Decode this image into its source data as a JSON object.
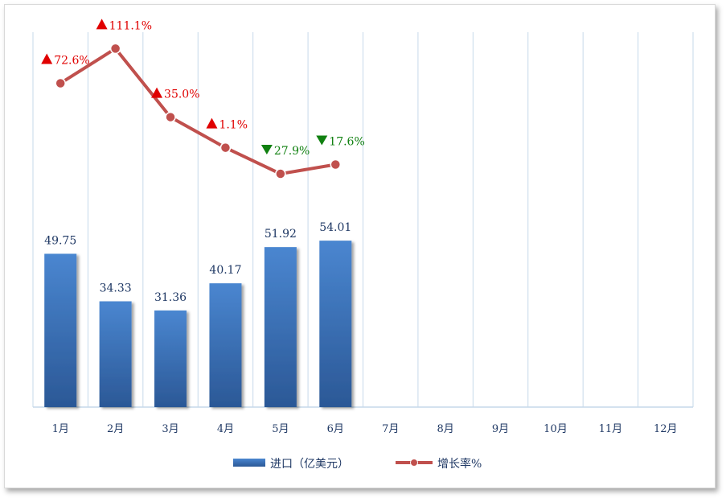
{
  "chart_data": {
    "type": "bar",
    "categories": [
      "1月",
      "2月",
      "3月",
      "4月",
      "5月",
      "6月",
      "7月",
      "8月",
      "9月",
      "10月",
      "11月",
      "12月"
    ],
    "series": [
      {
        "name": "进口（亿美元）",
        "type": "bar",
        "values": [
          49.75,
          34.33,
          31.36,
          40.17,
          51.92,
          54.01,
          null,
          null,
          null,
          null,
          null,
          null
        ],
        "labels": [
          "49.75",
          "34.33",
          "31.36",
          "40.17",
          "51.92",
          "54.01"
        ]
      },
      {
        "name": "增长率%",
        "type": "line",
        "values": [
          72.6,
          111.1,
          35.0,
          1.1,
          -27.9,
          -17.6,
          null,
          null,
          null,
          null,
          null,
          null
        ],
        "labels": [
          "72.6%",
          "111.1%",
          "35.0%",
          "1.1%",
          "27.9%",
          "17.6%"
        ],
        "direction": [
          "up",
          "up",
          "up",
          "up",
          "down",
          "down"
        ]
      }
    ],
    "legend": {
      "position": "bottom",
      "items": [
        "进口（亿美元）",
        "增长率%"
      ]
    },
    "colors": {
      "bar_top": "#4a86d0",
      "bar_bottom": "#2b5896",
      "line": "#c0504d",
      "up": "#e00000",
      "down": "#108010",
      "grid": "#c6d9ea",
      "text": "#1f3864"
    }
  }
}
